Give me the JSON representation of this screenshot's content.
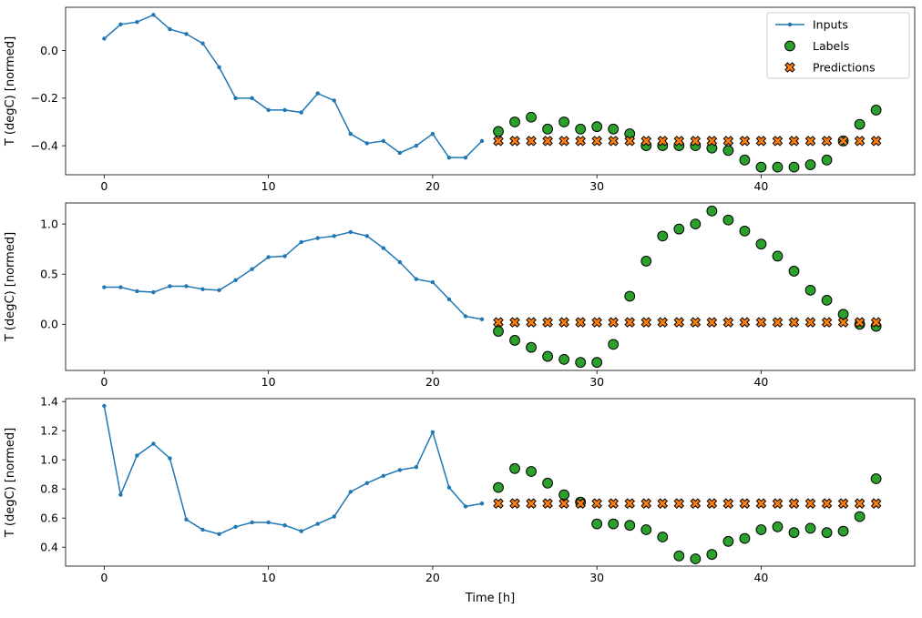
{
  "chart_data": {
    "type": "line",
    "xlabel": "Time [h]",
    "xlim": [
      -2.35,
      49.35
    ],
    "input_start": 0,
    "label_start": 24,
    "grid": false,
    "legend_position": "upper right (panel 1 only)",
    "xticks": [
      {
        "value": 0,
        "label": "0"
      },
      {
        "value": 10,
        "label": "10"
      },
      {
        "value": 20,
        "label": "20"
      },
      {
        "value": 30,
        "label": "30"
      },
      {
        "value": 40,
        "label": "40"
      }
    ],
    "colors": {
      "inputs": "#1f77b4",
      "labels": "#2ca02c",
      "predictions": "#ff7f0e",
      "marker_edge": "#000000"
    },
    "legend": [
      {
        "label": "Inputs",
        "marker": "line-dot"
      },
      {
        "label": "Labels",
        "marker": "circle"
      },
      {
        "label": "Predictions",
        "marker": "x-cross"
      }
    ],
    "panels": [
      {
        "ylabel": "T (degC) [normed]",
        "ylim": [
          -0.522,
          0.182
        ],
        "yticks": [
          {
            "value": 0.0,
            "label": "0.0"
          },
          {
            "value": -0.2,
            "label": "−0.2"
          },
          {
            "value": -0.4,
            "label": "−0.4"
          }
        ],
        "inputs": [
          0.05,
          0.11,
          0.12,
          0.15,
          0.09,
          0.07,
          0.03,
          -0.07,
          -0.2,
          -0.2,
          -0.25,
          -0.25,
          -0.26,
          -0.18,
          -0.21,
          -0.35,
          -0.39,
          -0.38,
          -0.43,
          -0.4,
          -0.35,
          -0.45,
          -0.45,
          -0.38
        ],
        "labels": [
          -0.34,
          -0.3,
          -0.28,
          -0.33,
          -0.3,
          -0.33,
          -0.32,
          -0.33,
          -0.35,
          -0.4,
          -0.4,
          -0.4,
          -0.4,
          -0.41,
          -0.42,
          -0.46,
          -0.49,
          -0.49,
          -0.49,
          -0.48,
          -0.46,
          -0.38,
          -0.31,
          -0.25
        ],
        "predictions": [
          -0.38,
          -0.38,
          -0.38,
          -0.38,
          -0.38,
          -0.38,
          -0.38,
          -0.38,
          -0.38,
          -0.38,
          -0.38,
          -0.38,
          -0.38,
          -0.38,
          -0.38,
          -0.38,
          -0.38,
          -0.38,
          -0.38,
          -0.38,
          -0.38,
          -0.38,
          -0.38,
          -0.38
        ]
      },
      {
        "ylabel": "T (degC) [normed]",
        "ylim": [
          -0.46,
          1.21
        ],
        "yticks": [
          {
            "value": 1.0,
            "label": "1.0"
          },
          {
            "value": 0.5,
            "label": "0.5"
          },
          {
            "value": 0.0,
            "label": "0.0"
          }
        ],
        "inputs": [
          0.37,
          0.37,
          0.33,
          0.32,
          0.38,
          0.38,
          0.35,
          0.34,
          0.44,
          0.55,
          0.67,
          0.68,
          0.82,
          0.86,
          0.88,
          0.92,
          0.88,
          0.76,
          0.62,
          0.45,
          0.42,
          0.25,
          0.08,
          0.05
        ],
        "labels": [
          -0.07,
          -0.16,
          -0.23,
          -0.32,
          -0.35,
          -0.38,
          -0.38,
          -0.2,
          0.28,
          0.63,
          0.88,
          0.95,
          1.0,
          1.13,
          1.04,
          0.93,
          0.8,
          0.68,
          0.53,
          0.34,
          0.24,
          0.1,
          0.0,
          -0.02
        ],
        "predictions": [
          0.02,
          0.02,
          0.02,
          0.02,
          0.02,
          0.02,
          0.02,
          0.02,
          0.02,
          0.02,
          0.02,
          0.02,
          0.02,
          0.02,
          0.02,
          0.02,
          0.02,
          0.02,
          0.02,
          0.02,
          0.02,
          0.02,
          0.02,
          0.02
        ]
      },
      {
        "ylabel": "T (degC) [normed]",
        "ylim": [
          0.27,
          1.42
        ],
        "yticks": [
          {
            "value": 1.4,
            "label": "1.4"
          },
          {
            "value": 1.2,
            "label": "1.2"
          },
          {
            "value": 1.0,
            "label": "1.0"
          },
          {
            "value": 0.8,
            "label": "0.8"
          },
          {
            "value": 0.6,
            "label": "0.6"
          },
          {
            "value": 0.4,
            "label": "0.4"
          }
        ],
        "inputs": [
          1.37,
          0.76,
          1.03,
          1.11,
          1.01,
          0.59,
          0.52,
          0.49,
          0.54,
          0.57,
          0.57,
          0.55,
          0.51,
          0.56,
          0.61,
          0.78,
          0.84,
          0.89,
          0.93,
          0.95,
          1.19,
          0.81,
          0.68,
          0.7
        ],
        "labels": [
          0.81,
          0.94,
          0.92,
          0.84,
          0.76,
          0.71,
          0.56,
          0.56,
          0.55,
          0.52,
          0.47,
          0.34,
          0.32,
          0.35,
          0.44,
          0.46,
          0.52,
          0.54,
          0.5,
          0.53,
          0.5,
          0.51,
          0.61,
          0.87
        ],
        "predictions": [
          0.7,
          0.7,
          0.7,
          0.7,
          0.7,
          0.7,
          0.7,
          0.7,
          0.7,
          0.7,
          0.7,
          0.7,
          0.7,
          0.7,
          0.7,
          0.7,
          0.7,
          0.7,
          0.7,
          0.7,
          0.7,
          0.7,
          0.7,
          0.7
        ]
      }
    ]
  }
}
